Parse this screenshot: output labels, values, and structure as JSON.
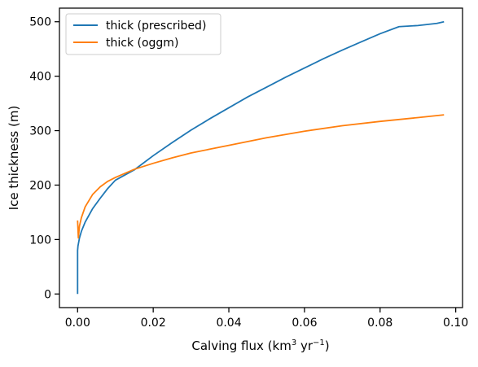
{
  "chart_data": {
    "type": "line",
    "xlabel": "Calving flux (km³ yr⁻¹)",
    "xlabel_parts": {
      "pre": "Calving flux (km",
      "sup1": "3",
      "mid": " yr",
      "sup2": "−1",
      "post": ")"
    },
    "ylabel": "Ice thickness (m)",
    "xlim": [
      -0.0048,
      0.1018
    ],
    "ylim": [
      -25,
      525
    ],
    "xticks": [
      0.0,
      0.02,
      0.04,
      0.06,
      0.08,
      0.1
    ],
    "xtick_labels": [
      "0.00",
      "0.02",
      "0.04",
      "0.06",
      "0.08",
      "0.10"
    ],
    "yticks": [
      0,
      100,
      200,
      300,
      400,
      500
    ],
    "ytick_labels": [
      "0",
      "100",
      "200",
      "300",
      "400",
      "500"
    ],
    "grid": false,
    "legend_position": "top-left",
    "series": [
      {
        "name": "thick (prescribed)",
        "color": "#1f77b4",
        "x": [
          0.0,
          0.0,
          0.0001,
          0.0005,
          0.001,
          0.002,
          0.004,
          0.006,
          0.008,
          0.01,
          0.015,
          0.02,
          0.025,
          0.03,
          0.035,
          0.04,
          0.045,
          0.05,
          0.055,
          0.06,
          0.065,
          0.07,
          0.075,
          0.08,
          0.085,
          0.09,
          0.095,
          0.0969
        ],
        "y": [
          0,
          80,
          88,
          103,
          115,
          132,
          157,
          176,
          194,
          209,
          228,
          254,
          278,
          301,
          322,
          342,
          362,
          380,
          398,
          415,
          432,
          448,
          463,
          478,
          491,
          493,
          497,
          500
        ]
      },
      {
        "name": "thick (oggm)",
        "color": "#ff7f0e",
        "x": [
          0.0,
          0.0002,
          0.0005,
          0.001,
          0.002,
          0.004,
          0.006,
          0.008,
          0.01,
          0.015,
          0.02,
          0.025,
          0.03,
          0.035,
          0.04,
          0.05,
          0.06,
          0.07,
          0.08,
          0.09,
          0.0969
        ],
        "y": [
          135,
          103,
          125,
          140,
          160,
          183,
          197,
          207,
          214,
          229,
          240,
          250,
          259,
          266,
          273,
          287,
          299,
          309,
          317,
          324,
          329
        ]
      }
    ]
  }
}
